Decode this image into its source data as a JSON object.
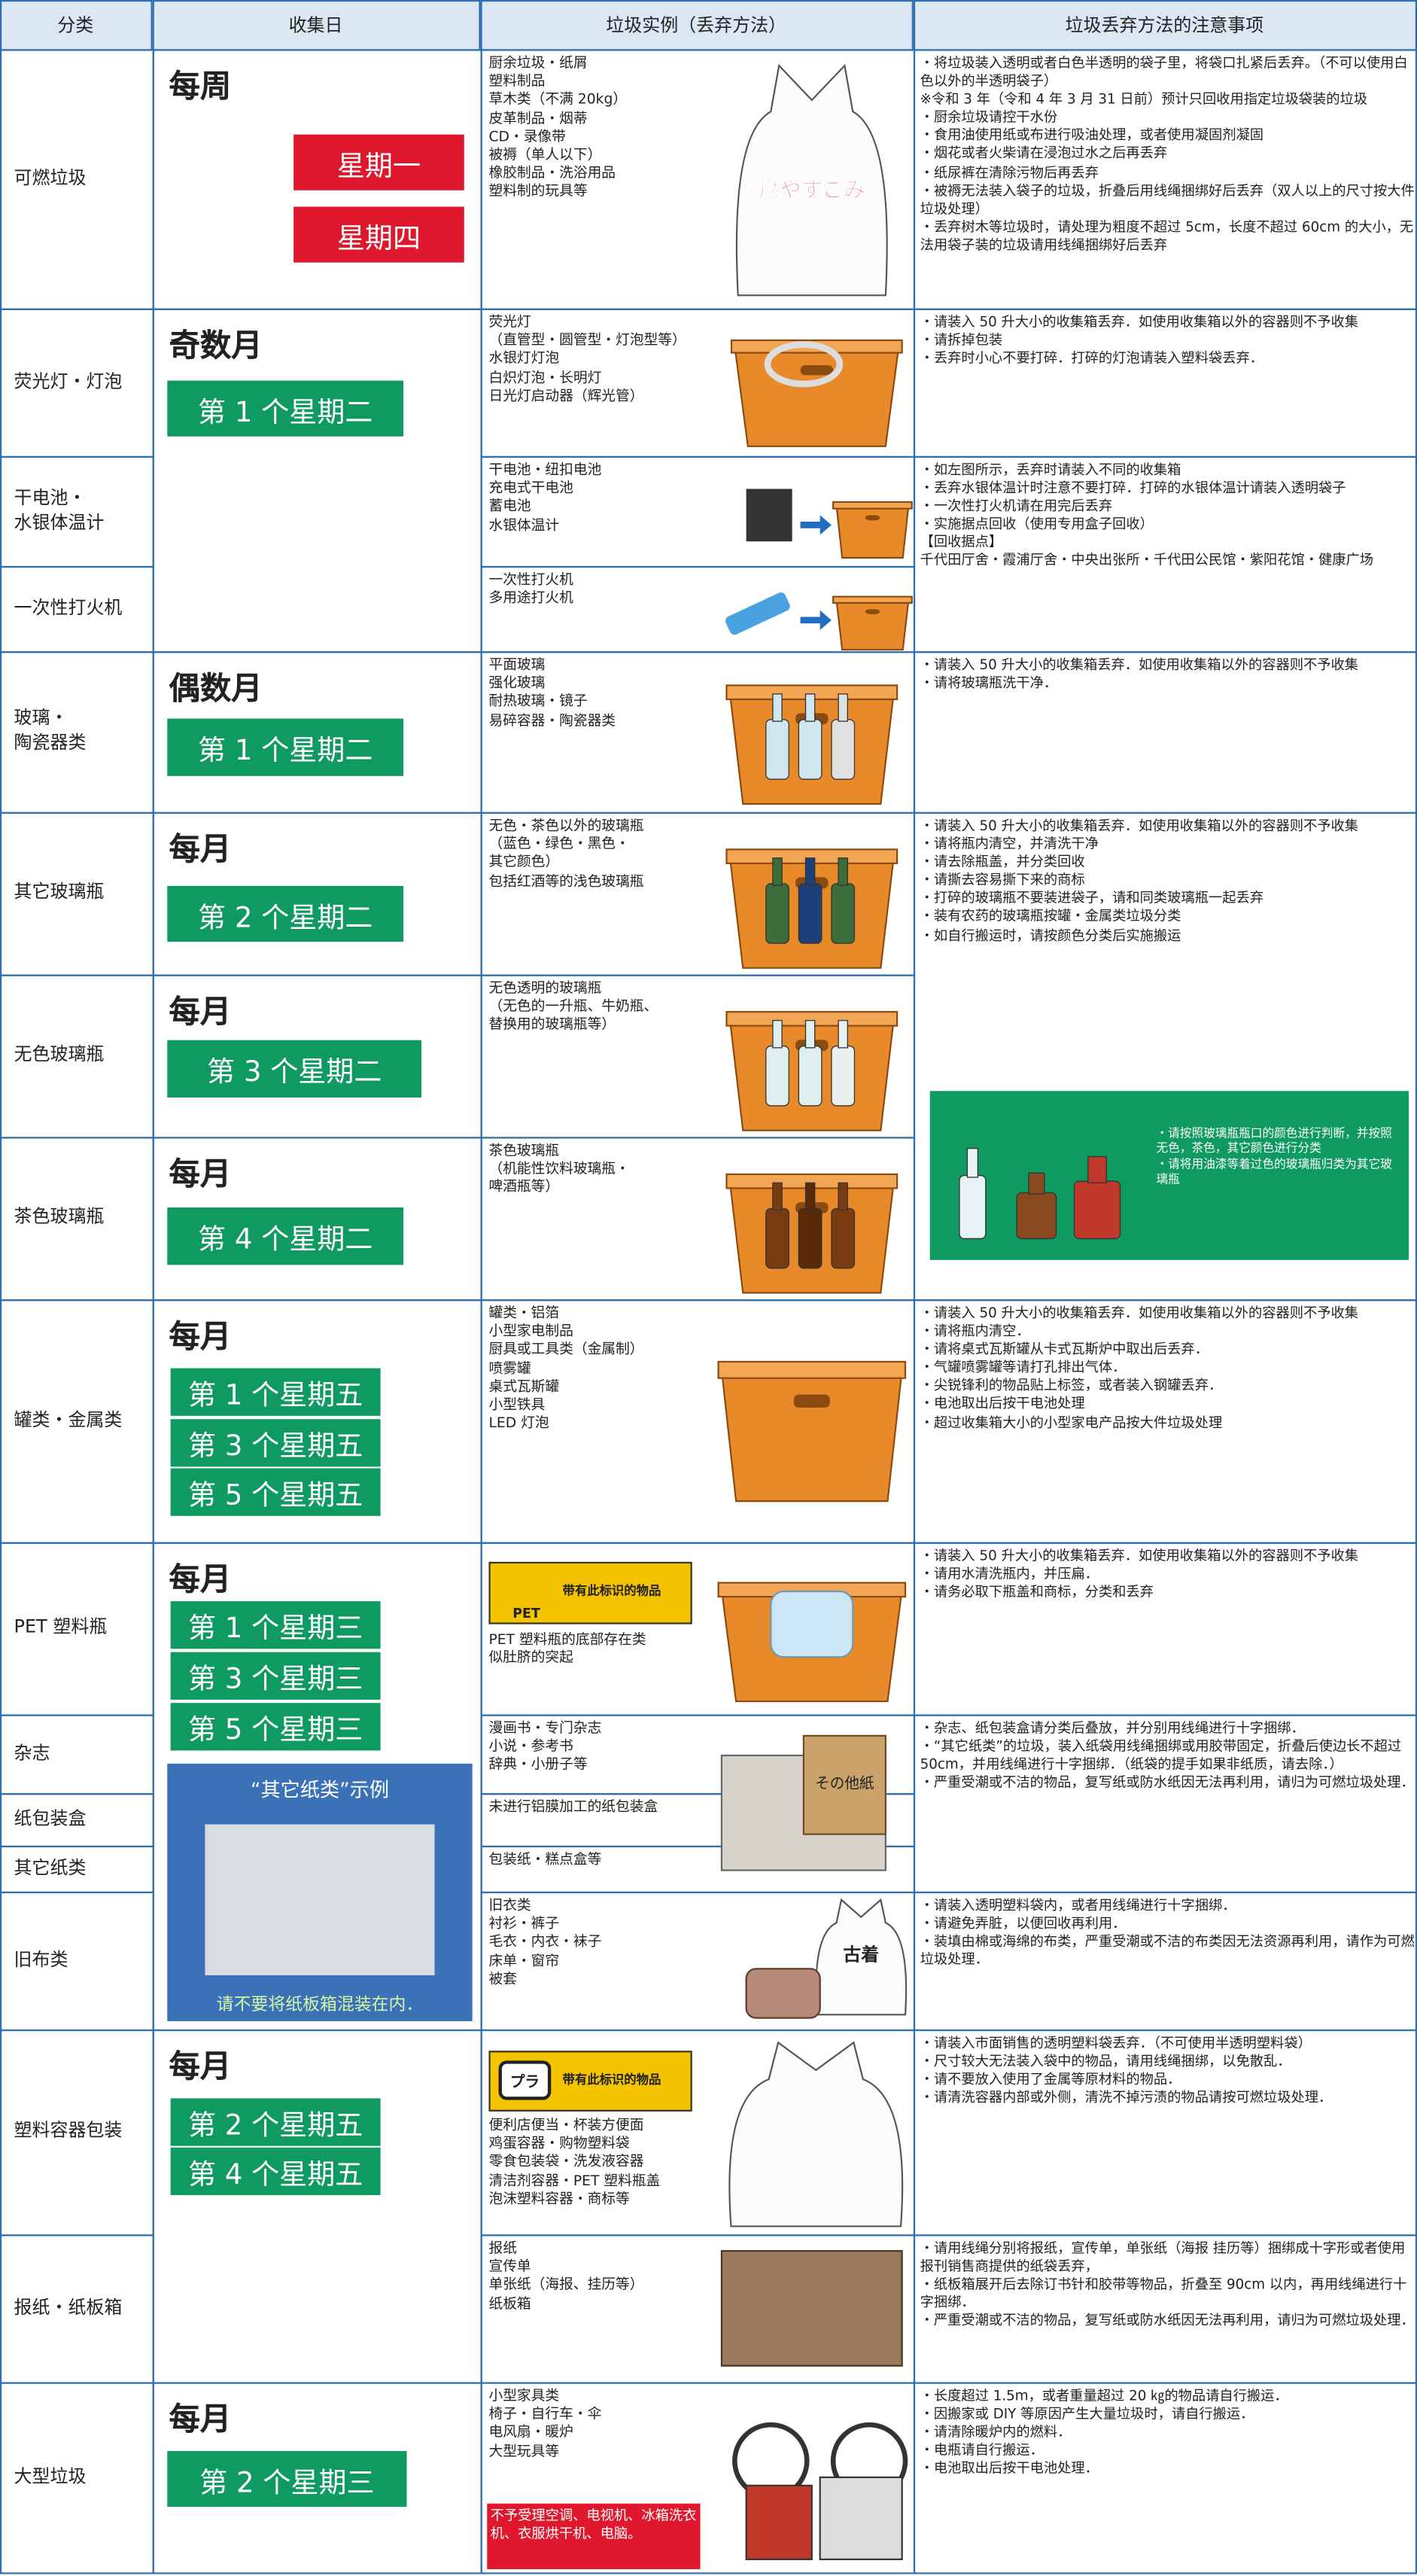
{
  "header": [
    "分类",
    "收集日",
    "垃圾实例（丢弃方法）",
    "垃圾丢弃方法的注意事项"
  ],
  "categories": [
    "可燃垃圾",
    "荧光灯・灯泡",
    "干电池・\n水银体温计",
    "一次性打火机",
    "玻璃・\n陶瓷器类",
    "其它玻璃瓶",
    "无色玻璃瓶",
    "茶色玻璃瓶",
    "罐类・金属类",
    "PET 塑料瓶",
    "杂志",
    "纸包装盒",
    "其它纸类",
    "旧布类",
    "塑料容器包装",
    "报纸・纸板箱",
    "大型垃圾"
  ],
  "schedules": [
    {
      "frequency": "每周",
      "days": [
        "星期一",
        "星期四"
      ]
    },
    {
      "frequency": "奇数月",
      "days": [
        "第 1 个星期二"
      ]
    },
    {
      "frequency": "偶数月",
      "days": [
        "第 1 个星期二"
      ]
    },
    {
      "frequency": "每月",
      "days": [
        "第 2 个星期二"
      ]
    },
    {
      "frequency": "每月",
      "days": [
        "第 3 个星期二"
      ]
    },
    {
      "frequency": "每月",
      "days": [
        "第 4 个星期二"
      ]
    },
    {
      "frequency": "每月",
      "days": [
        "第 1 个星期五",
        "第 3 个星期五",
        "第 5 个星期五"
      ]
    },
    {
      "frequency": "每月",
      "days": [
        "第 1 个星期三",
        "第 3 个星期三",
        "第 5 个星期三"
      ]
    },
    {
      "frequency": "每月",
      "days": [
        "第 2 个星期五",
        "第 4 个星期五"
      ]
    },
    {
      "frequency": "每月",
      "days": [
        "第 2 个星期三"
      ]
    }
  ],
  "examples": [
    "厨余垃圾・纸屑\n塑料制品\n草木类（不满 20kg）\n皮革制品・烟蒂\nCD・录像带\n被褥（单人以下）\n橡胶制品・洗浴用品\n塑料制的玩具等",
    "荧光灯\n（直管型・圆管型・灯泡型等）\n水银灯灯泡\n白炽灯泡・长明灯\n日光灯启动器（辉光管）",
    "干电池・纽扣电池\n充电式干电池\n蓄电池\n水银体温计",
    "一次性打火机\n多用途打火机",
    "平面玻璃\n强化玻璃\n耐热玻璃・镜子\n易碎容器・陶瓷器类",
    "无色・茶色以外的玻璃瓶\n（蓝色・绿色・黑色・\n其它颜色）\n包括红酒等的浅色玻璃瓶",
    "无色透明的玻璃瓶\n（无色的一升瓶、牛奶瓶、\n替换用的玻璃瓶等）",
    "茶色玻璃瓶\n（机能性饮料玻璃瓶・\n啤酒瓶等）",
    "罐类・铝箔\n小型家电制品\n厨具或工具类（金属制）\n喷雾罐\n桌式瓦斯罐\n小型铁具\nLED 灯泡",
    "PET 塑料瓶的底部存在类\n似肚脐的突起",
    "漫画书・专门杂志\n小说・参考书\n辞典・小册子等",
    "未进行铝膜加工的纸包装盒",
    "包装纸・糕点盒等",
    "旧衣类\n衬衫・裤子\n毛衣・内衣・袜子\n床单・窗帘\n被套",
    "便利店便当・杯装方便面\n鸡蛋容器・购物塑料袋\n零食包装袋・洗发液容器\n清洁剂容器・PET 塑料瓶盖\n泡沫塑料容器・商标等",
    "报纸\n宣传单\n单张纸（海报、挂历等）\n纸板箱",
    "小型家具类\n椅子・自行车・伞\n电风扇・暖炉\n大型玩具等"
  ],
  "notes": [
    "・将垃圾装入透明或者白色半透明的袋子里，将袋口扎紧后丢弃。（不可以使用白色以外的半透明袋子）\n※令和 3 年（令和 4 年 3 月 31 日前）预计只回收用指定垃圾袋装的垃圾\n・厨余垃圾请控干水份\n・食用油使用纸或布进行吸油处理，或者使用凝固剂凝固\n・烟花或者火柴请在浸泡过水之后再丢弃\n・纸尿裤在清除污物后再丢弃\n・被褥无法装入袋子的垃圾，折叠后用线绳捆绑好后丢弃（双人以上的尺寸按大件垃圾处理）\n・丢弃树木等垃圾时，请处理为粗度不超过 5cm，长度不超过 60cm 的大小，无法用袋子装的垃圾请用线绳捆绑好后丢弃",
    "・请装入 50 升大小的收集箱丢弃．如使用收集箱以外的容器则不予收集\n・请拆掉包装\n・丢弃时小心不要打碎．打碎的灯泡请装入塑料袋丢弃．",
    "・如左图所示，丢弃时请装入不同的收集箱\n・丢弃水银体温计时注意不要打碎．打碎的水银体温计请装入透明袋子\n・一次性打火机请在用完后丢弃\n・实施据点回收（使用专用盒子回收）\n【回收据点】\n千代田厅舍・霞浦厅舍・中央出张所・千代田公民馆・紫阳花馆・健康广场",
    "・请装入 50 升大小的收集箱丢弃．如使用收集箱以外的容器则不予收集\n・请将玻璃瓶洗干净．",
    "・请装入 50 升大小的收集箱丢弃．如使用收集箱以外的容器则不予收集\n・请将瓶内清空，并清洗干净\n・请去除瓶盖，并分类回收\n・请撕去容易撕下来的商标\n・打碎的玻璃瓶不要装进袋子，请和同类玻璃瓶一起丢弃\n・装有农药的玻璃瓶按罐・金属类垃圾分类\n・如自行搬运时，请按颜色分类后实施搬运",
    "・请装入 50 升大小的收集箱丢弃．如使用收集箱以外的容器则不予收集\n・请将瓶内清空．\n・请将桌式瓦斯罐从卡式瓦斯炉中取出后丢弃．\n・气罐喷雾罐等请打孔排出气体．\n・尖锐锋利的物品贴上标签，或者装入钢罐丢弃．\n・电池取出后按干电池处理\n・超过收集箱大小的小型家电产品按大件垃圾处理",
    "・请装入 50 升大小的收集箱丢弃．如使用收集箱以外的容器则不予收集\n・请用水清洗瓶内，并压扁．\n・请务必取下瓶盖和商标，分类和丢弃",
    "・杂志、纸包装盒请分类后叠放，并分别用线绳进行十字捆绑．\n・“其它纸类”的垃圾，装入纸袋用线绳捆绑或用胶带固定，折叠后使边长不超过 50cm，并用线绳进行十字捆绑．（纸袋的提手如果非纸质，请去除．）\n・严重受潮或不洁的物品，复写纸或防水纸因无法再利用，请归为可燃垃圾处理．",
    "・请装入透明塑料袋内，或者用线绳进行十字捆绑．\n・请避免弄脏，以便回收再利用．\n・装填由棉或海绵的布类，严重受潮或不洁的布类因无法资源再利用，请作为可燃垃圾处理．",
    "・请装入市面销售的透明塑料袋丢弃．（不可使用半透明塑料袋）\n・尺寸较大无法装入袋中的物品，请用线绳捆绑，以免散乱．\n・请不要放入使用了金属等原材料的物品．\n・请清洗容器内部或外侧，清洗不掉污渍的物品请按可燃垃圾处理．",
    "・请用线绳分别将报纸，宣传单，单张纸（海报 挂历等）捆绑成十字形或者使用报刊销售商提供的纸袋丢弃，\n・纸板箱展开后去除订书针和胶带等物品，折叠至 90cm 以内，再用线绳进行十字捆绑．\n・严重受潮或不洁的物品，复写纸或防水纸因无法再利用，请归为可燃垃圾处理．",
    "・长度超过 1.5m，或者重量超过 20 ㎏的物品请自行搬运．\n・因搬家或 DIY 等原因产生大量垃圾时，请自行搬运．\n・请清除暖炉内的燃料．\n・电瓶请自行搬运．\n・电池取出后按干电池处理．"
  ],
  "glass_color_note": "・请按照玻璃瓶瓶口的颜色进行判断，并按照无色，茶色，其它颜色进行分类\n・请将用油漆等着过色的玻璃瓶归类为其它玻璃瓶",
  "paper_examples": {
    "title": "“其它纸类”示例",
    "caption": "请不要将纸板箱混装在内．"
  },
  "pet_mark": {
    "label": "带有此标识的物品",
    "code": "PET"
  },
  "plastic_mark": {
    "label": "带有此标识的物品",
    "icon": "プラ"
  },
  "image_labels": [
    "燃やすごみ",
    "その他紙",
    "古着"
  ],
  "bulky_exclusions": "不予受理空调、电视机、冰箱洗衣机、衣服烘干机、电脑。"
}
